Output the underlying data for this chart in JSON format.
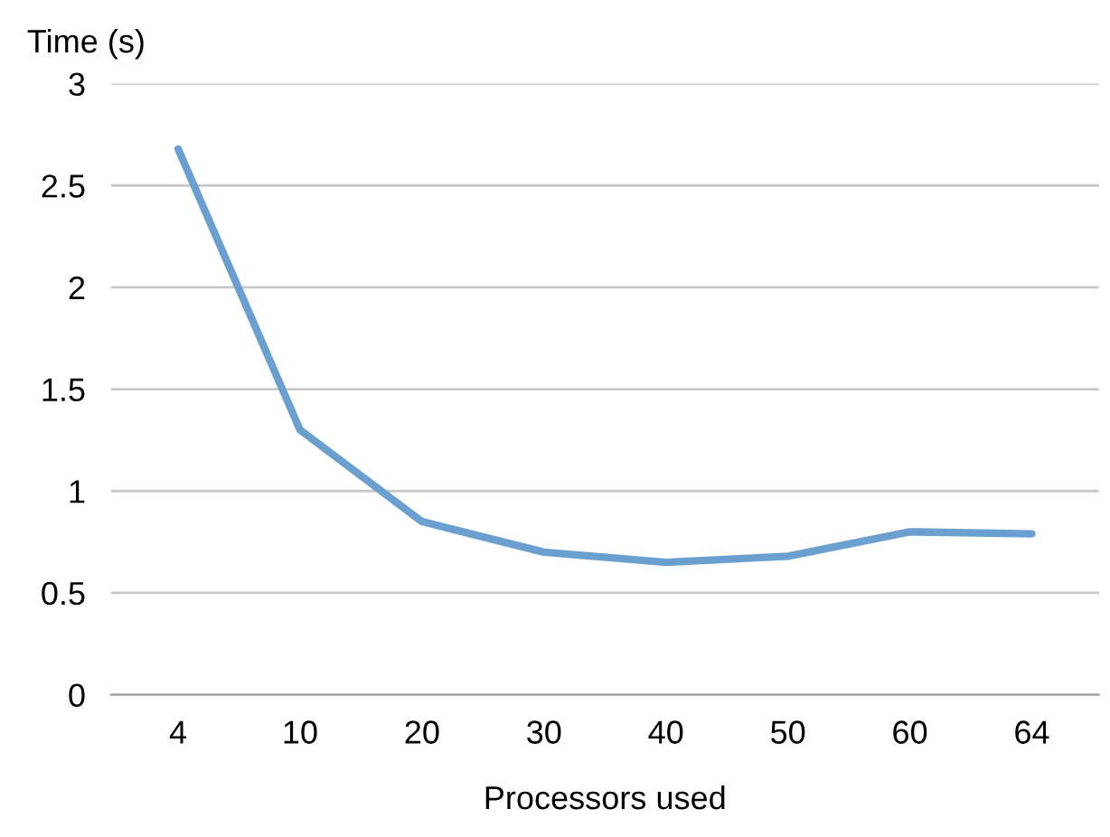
{
  "chart_data": {
    "type": "line",
    "xlabel": "Processors used",
    "ylabel": "Time (s)",
    "categories": [
      "4",
      "10",
      "20",
      "30",
      "40",
      "50",
      "60",
      "64"
    ],
    "series": [
      {
        "color": "#6a9fd0",
        "values": [
          2.68,
          1.3,
          0.85,
          0.7,
          0.65,
          0.68,
          0.8,
          0.79
        ]
      }
    ],
    "ylim": [
      0,
      3
    ],
    "yticks": [
      0,
      0.5,
      1,
      1.5,
      2,
      2.5,
      3
    ],
    "grid": "y"
  }
}
